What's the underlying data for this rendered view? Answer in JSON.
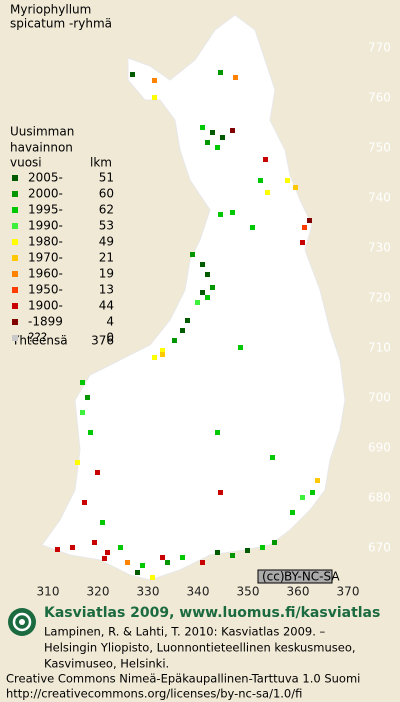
{
  "title": [
    "Myriophyllum",
    "spicatum -ryhmä"
  ],
  "legend": {
    "heading": [
      "Uusimman",
      "havainnon"
    ],
    "year_header": "vuosi",
    "count_header": "lkm",
    "rows": [
      {
        "label": "2005-",
        "count": 51,
        "color": "#005a00"
      },
      {
        "label": "2000-",
        "count": 60,
        "color": "#009600"
      },
      {
        "label": "1995-",
        "count": 62,
        "color": "#00c800"
      },
      {
        "label": "1990-",
        "count": 53,
        "color": "#3cf03c"
      },
      {
        "label": "1980-",
        "count": 49,
        "color": "#ffff00"
      },
      {
        "label": "1970-",
        "count": 21,
        "color": "#ffc800"
      },
      {
        "label": "1960-",
        "count": 19,
        "color": "#ff8200"
      },
      {
        "label": "1950-",
        "count": 13,
        "color": "#ff3c00"
      },
      {
        "label": "1900-",
        "count": 44,
        "color": "#c80000"
      },
      {
        "label": "-1899",
        "count": 4,
        "color": "#820000"
      },
      {
        "label": "???",
        "count": 0,
        "color": "#c8c8c8"
      }
    ],
    "total_label": "Yhteensä",
    "total": 376
  },
  "grid": {
    "y_labels": [
      770,
      760,
      750,
      740,
      730,
      720,
      710,
      700,
      690,
      680,
      670
    ],
    "x_labels": [
      310,
      320,
      330,
      340,
      350,
      360,
      370
    ]
  },
  "license_badge": "BY-NC-SA",
  "footer": {
    "headline": "Kasviatlas 2009, www.luomus.fi/kasviatlas",
    "citation": [
      "Lampinen, R. & Lahti, T. 2010: Kasviatlas 2009. –",
      "Helsingin Yliopisto, Luonnontieteellinen keskusmuseo,",
      "Kasvimuseo, Helsinki."
    ],
    "license": [
      "Creative Commons Nimeä-Epäkaupallinen-Tarttuva 1.0 Suomi",
      "http://creativecommons.org/licenses/by-nc-sa/1.0/fi"
    ]
  }
}
